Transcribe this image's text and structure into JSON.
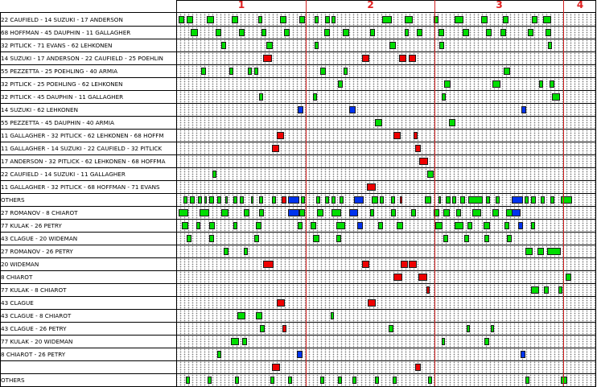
{
  "timeline": {
    "periods": [
      "1",
      "2",
      "3",
      "4"
    ],
    "colors": {
      "shot": "#00dd00",
      "goal": "#ee0000",
      "faceoff": "#0033ee",
      "period_divider": "#d22020"
    }
  },
  "top_section": {
    "rows": [
      {
        "label": "22 CAUFIELD - 14 SUZUKI - 17 ANDERSON",
        "events": [
          [
            222,
            7,
            "g"
          ],
          [
            232,
            8,
            "g"
          ],
          [
            257,
            9,
            "g"
          ],
          [
            288,
            8,
            "g"
          ],
          [
            321,
            5,
            "g"
          ],
          [
            348,
            8,
            "g"
          ],
          [
            372,
            7,
            "g"
          ],
          [
            391,
            5,
            "g"
          ],
          [
            404,
            6,
            "g"
          ],
          [
            412,
            5,
            "g"
          ],
          [
            475,
            12,
            "g"
          ],
          [
            503,
            10,
            "g"
          ],
          [
            539,
            6,
            "g"
          ],
          [
            565,
            11,
            "g"
          ],
          [
            598,
            8,
            "g"
          ],
          [
            625,
            7,
            "g"
          ],
          [
            661,
            7,
            "g"
          ],
          [
            675,
            10,
            "g"
          ]
        ]
      },
      {
        "label": "68 HOFFMAN - 45 DAUPHIN - 11 GALLAGHER",
        "events": [
          [
            237,
            9,
            "g"
          ],
          [
            268,
            7,
            "g"
          ],
          [
            297,
            7,
            "g"
          ],
          [
            325,
            6,
            "g"
          ],
          [
            353,
            7,
            "g"
          ],
          [
            403,
            7,
            "g"
          ],
          [
            426,
            8,
            "g"
          ],
          [
            460,
            6,
            "g"
          ],
          [
            503,
            5,
            "g"
          ],
          [
            518,
            7,
            "g"
          ],
          [
            545,
            7,
            "g"
          ],
          [
            575,
            8,
            "g"
          ],
          [
            604,
            7,
            "g"
          ],
          [
            622,
            7,
            "g"
          ],
          [
            656,
            7,
            "g"
          ],
          [
            678,
            7,
            "g"
          ]
        ]
      },
      {
        "label": "32 PITLICK - 71 EVANS - 62 LEHKONEN",
        "events": [
          [
            275,
            6,
            "g"
          ],
          [
            331,
            8,
            "g"
          ],
          [
            391,
            5,
            "g"
          ],
          [
            484,
            8,
            "g"
          ],
          [
            546,
            6,
            "g"
          ],
          [
            681,
            5,
            "g"
          ]
        ]
      },
      {
        "label": "14 SUZUKI - 17 ANDERSON - 22 CAUFIELD - 25 POEHLIN",
        "events": [
          [
            327,
            11,
            "r"
          ],
          [
            450,
            9,
            "r"
          ],
          [
            496,
            9,
            "r"
          ],
          [
            508,
            9,
            "r"
          ]
        ]
      },
      {
        "label": "55 PEZZETTA - 25 POEHLING - 40 ARMIA",
        "events": [
          [
            250,
            6,
            "g"
          ],
          [
            285,
            5,
            "g"
          ],
          [
            308,
            5,
            "g"
          ],
          [
            316,
            5,
            "g"
          ],
          [
            398,
            7,
            "g"
          ],
          [
            427,
            5,
            "g"
          ],
          [
            626,
            8,
            "g"
          ]
        ]
      },
      {
        "label": "32 PITLICK - 25 POEHLING - 62 LEHKONEN",
        "events": [
          [
            420,
            6,
            "g"
          ],
          [
            552,
            8,
            "g"
          ],
          [
            612,
            10,
            "g"
          ],
          [
            670,
            5,
            "g"
          ],
          [
            683,
            6,
            "g"
          ]
        ]
      },
      {
        "label": "32 PITLICK - 45 DAUPHIN - 11 GALLAGHER",
        "events": [
          [
            322,
            5,
            "g"
          ],
          [
            389,
            5,
            "g"
          ],
          [
            549,
            5,
            "g"
          ],
          [
            686,
            10,
            "g"
          ]
        ]
      },
      {
        "label": "14 SUZUKI - 62 LEHKONEN",
        "events": [
          [
            370,
            7,
            "b"
          ],
          [
            434,
            8,
            "b"
          ],
          [
            648,
            6,
            "b"
          ]
        ]
      },
      {
        "label": "55 PEZZETTA - 45 DAUPHIN - 40 ARMIA",
        "events": [
          [
            466,
            9,
            "g"
          ],
          [
            558,
            8,
            "g"
          ]
        ]
      },
      {
        "label": "11 GALLAGHER - 32 PITLICK - 62 LEHKONEN - 68 HOFFM",
        "events": [
          [
            344,
            9,
            "r"
          ],
          [
            489,
            9,
            "r"
          ],
          [
            514,
            5,
            "r"
          ]
        ]
      },
      {
        "label": "11 GALLAGHER - 14 SUZUKI - 22 CAUFIELD - 32 PITLICK",
        "events": [
          [
            338,
            9,
            "r"
          ],
          [
            516,
            7,
            "r"
          ]
        ]
      },
      {
        "label": "17 ANDERSON - 32 PITLICK - 62 LEHKONEN - 68 HOFFMA",
        "events": [
          [
            521,
            11,
            "r"
          ]
        ]
      },
      {
        "label": "22 CAUFIELD - 14 SUZUKI - 11 GALLAGHER",
        "events": [
          [
            264,
            5,
            "g"
          ],
          [
            531,
            8,
            "g"
          ]
        ]
      },
      {
        "label": "11 GALLAGHER - 32 PITLICK - 68 HOFFMAN - 71 EVANS",
        "events": [
          [
            456,
            11,
            "r"
          ]
        ]
      },
      {
        "label": "OTHERS",
        "events": [
          [
            228,
            5,
            "g"
          ],
          [
            236,
            6,
            "g"
          ],
          [
            246,
            5,
            "g"
          ],
          [
            254,
            3,
            "g"
          ],
          [
            260,
            6,
            "g"
          ],
          [
            270,
            5,
            "g"
          ],
          [
            280,
            3,
            "g"
          ],
          [
            290,
            5,
            "g"
          ],
          [
            298,
            5,
            "g"
          ],
          [
            312,
            3,
            "g"
          ],
          [
            322,
            5,
            "g"
          ],
          [
            338,
            5,
            "g"
          ],
          [
            350,
            6,
            "r"
          ],
          [
            358,
            14,
            "b"
          ],
          [
            374,
            5,
            "g"
          ],
          [
            393,
            5,
            "g"
          ],
          [
            404,
            5,
            "g"
          ],
          [
            412,
            5,
            "g"
          ],
          [
            422,
            5,
            "g"
          ],
          [
            440,
            12,
            "b"
          ],
          [
            462,
            8,
            "g"
          ],
          [
            472,
            5,
            "g"
          ],
          [
            486,
            5,
            "g"
          ],
          [
            497,
            3,
            "r"
          ],
          [
            528,
            8,
            "g"
          ],
          [
            545,
            3,
            "g"
          ],
          [
            554,
            6,
            "g"
          ],
          [
            562,
            5,
            "g"
          ],
          [
            572,
            6,
            "g"
          ],
          [
            582,
            18,
            "g"
          ],
          [
            604,
            5,
            "g"
          ],
          [
            616,
            5,
            "g"
          ],
          [
            636,
            14,
            "b"
          ],
          [
            652,
            5,
            "g"
          ],
          [
            660,
            6,
            "g"
          ],
          [
            672,
            5,
            "g"
          ],
          [
            684,
            5,
            "g"
          ],
          [
            697,
            14,
            "g"
          ]
        ]
      }
    ]
  },
  "bottom_section": {
    "rows": [
      {
        "label": "27 ROMANOV - 8 CHIAROT",
        "events": [
          [
            222,
            12,
            "g"
          ],
          [
            248,
            12,
            "g"
          ],
          [
            275,
            9,
            "g"
          ],
          [
            303,
            7,
            "g"
          ],
          [
            322,
            6,
            "g"
          ],
          [
            358,
            14,
            "b"
          ],
          [
            372,
            7,
            "g"
          ],
          [
            394,
            8,
            "g"
          ],
          [
            412,
            12,
            "g"
          ],
          [
            434,
            11,
            "b"
          ],
          [
            460,
            5,
            "g"
          ],
          [
            486,
            6,
            "g"
          ],
          [
            511,
            6,
            "g"
          ],
          [
            539,
            7,
            "g"
          ],
          [
            551,
            8,
            "g"
          ],
          [
            567,
            6,
            "g"
          ],
          [
            587,
            11,
            "g"
          ],
          [
            612,
            8,
            "g"
          ],
          [
            629,
            8,
            "g"
          ],
          [
            636,
            11,
            "b"
          ]
        ]
      },
      {
        "label": "77 KULAK - 26 PETRY",
        "events": [
          [
            226,
            8,
            "g"
          ],
          [
            244,
            5,
            "g"
          ],
          [
            260,
            7,
            "g"
          ],
          [
            290,
            5,
            "g"
          ],
          [
            318,
            7,
            "g"
          ],
          [
            370,
            6,
            "g"
          ],
          [
            386,
            7,
            "g"
          ],
          [
            418,
            11,
            "g"
          ],
          [
            444,
            7,
            "b"
          ],
          [
            470,
            6,
            "g"
          ],
          [
            493,
            8,
            "g"
          ],
          [
            541,
            9,
            "g"
          ],
          [
            565,
            11,
            "g"
          ],
          [
            581,
            6,
            "g"
          ],
          [
            601,
            8,
            "g"
          ],
          [
            627,
            6,
            "g"
          ],
          [
            644,
            6,
            "b"
          ],
          [
            660,
            5,
            "g"
          ]
        ]
      },
      {
        "label": "43 CLAGUE - 20 WIDEMAN",
        "events": [
          [
            232,
            6,
            "g"
          ],
          [
            260,
            6,
            "g"
          ],
          [
            316,
            6,
            "g"
          ],
          [
            389,
            8,
            "g"
          ],
          [
            418,
            6,
            "g"
          ],
          [
            551,
            6,
            "g"
          ],
          [
            577,
            6,
            "g"
          ],
          [
            602,
            6,
            "g"
          ],
          [
            630,
            6,
            "g"
          ]
        ]
      },
      {
        "label": "27 ROMANOV - 26 PETRY",
        "events": [
          [
            278,
            6,
            "g"
          ],
          [
            303,
            5,
            "g"
          ],
          [
            653,
            9,
            "g"
          ],
          [
            668,
            8,
            "g"
          ],
          [
            680,
            17,
            "g"
          ]
        ]
      },
      {
        "label": "20 WIDEMAN",
        "events": [
          [
            327,
            13,
            "r"
          ],
          [
            450,
            9,
            "r"
          ],
          [
            498,
            9,
            "r"
          ],
          [
            508,
            10,
            "r"
          ]
        ]
      },
      {
        "label": "8 CHIAROT",
        "events": [
          [
            489,
            11,
            "r"
          ],
          [
            520,
            11,
            "r"
          ],
          [
            703,
            7,
            "g"
          ]
        ]
      },
      {
        "label": "77 KULAK - 8 CHIAROT",
        "events": [
          [
            530,
            4,
            "r"
          ],
          [
            660,
            10,
            "g"
          ],
          [
            676,
            6,
            "g"
          ],
          [
            694,
            5,
            "g"
          ]
        ]
      },
      {
        "label": "43 CLAGUE",
        "events": [
          [
            344,
            10,
            "r"
          ],
          [
            457,
            10,
            "r"
          ]
        ]
      },
      {
        "label": "43 CLAGUE - 8 CHIAROT",
        "events": [
          [
            295,
            10,
            "g"
          ],
          [
            318,
            8,
            "g"
          ],
          [
            411,
            4,
            "g"
          ]
        ]
      },
      {
        "label": "43 CLAGUE - 26 PETRY",
        "events": [
          [
            323,
            6,
            "g"
          ],
          [
            351,
            5,
            "r"
          ],
          [
            483,
            6,
            "g"
          ],
          [
            580,
            4,
            "g"
          ],
          [
            610,
            4,
            "g"
          ]
        ]
      },
      {
        "label": "77 KULAK - 20 WIDEMAN",
        "events": [
          [
            287,
            10,
            "g"
          ],
          [
            301,
            6,
            "g"
          ],
          [
            549,
            4,
            "g"
          ],
          [
            602,
            6,
            "g"
          ]
        ]
      },
      {
        "label": "8 CHIAROT - 26 PETRY",
        "events": [
          [
            270,
            5,
            "g"
          ],
          [
            369,
            7,
            "b"
          ],
          [
            647,
            6,
            "b"
          ]
        ]
      },
      {
        "label": "",
        "events": [
          [
            338,
            10,
            "r"
          ],
          [
            516,
            7,
            "r"
          ]
        ]
      },
      {
        "label": "OTHERS",
        "events": [
          [
            231,
            5,
            "g"
          ],
          [
            258,
            5,
            "g"
          ],
          [
            292,
            5,
            "g"
          ],
          [
            336,
            5,
            "g"
          ],
          [
            358,
            5,
            "g"
          ],
          [
            398,
            5,
            "g"
          ],
          [
            420,
            5,
            "g"
          ],
          [
            438,
            5,
            "g"
          ],
          [
            466,
            5,
            "g"
          ],
          [
            488,
            5,
            "g"
          ],
          [
            532,
            5,
            "g"
          ],
          [
            653,
            5,
            "g"
          ],
          [
            697,
            8,
            "g"
          ]
        ]
      }
    ]
  }
}
